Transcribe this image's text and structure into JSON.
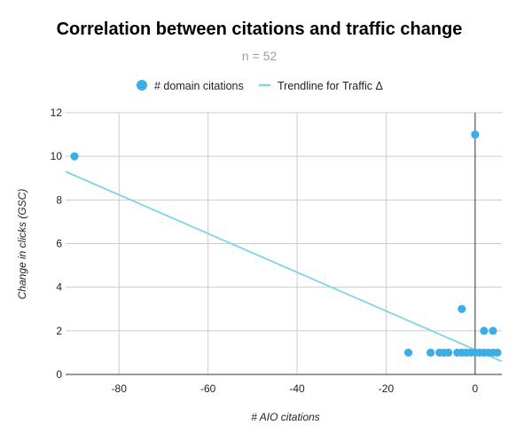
{
  "chart_data": {
    "type": "scatter",
    "title": "Correlation between citations and traffic change",
    "subtitle": "n = 52",
    "xlabel": "# AIO citations",
    "ylabel": "Change in clicks (GSC)",
    "xlim": [
      -92,
      6
    ],
    "ylim": [
      0,
      12
    ],
    "x_ticks": [
      -80,
      -60,
      -40,
      -20,
      0
    ],
    "y_ticks": [
      0,
      2,
      4,
      6,
      8,
      10,
      12
    ],
    "grid": true,
    "legend_position": "top",
    "series": [
      {
        "name": "# domain citations",
        "color": "#3baee8",
        "points": [
          {
            "x": -90,
            "y": 10
          },
          {
            "x": 0,
            "y": 11
          },
          {
            "x": -3,
            "y": 3
          },
          {
            "x": 2,
            "y": 2
          },
          {
            "x": 4,
            "y": 2
          },
          {
            "x": -15,
            "y": 1
          },
          {
            "x": -10,
            "y": 1
          },
          {
            "x": -8,
            "y": 1
          },
          {
            "x": -7,
            "y": 1
          },
          {
            "x": -6,
            "y": 1
          },
          {
            "x": -4,
            "y": 1
          },
          {
            "x": -3,
            "y": 1
          },
          {
            "x": -2,
            "y": 1
          },
          {
            "x": -1,
            "y": 1
          },
          {
            "x": 0,
            "y": 1
          },
          {
            "x": 1,
            "y": 1
          },
          {
            "x": 2,
            "y": 1
          },
          {
            "x": 3,
            "y": 1
          },
          {
            "x": 4,
            "y": 1
          },
          {
            "x": 5,
            "y": 1
          }
        ]
      }
    ],
    "trendline": {
      "name": "Trendline for Traffic Δ",
      "color": "#7fd4ec",
      "x": [
        -92,
        6
      ],
      "y": [
        9.3,
        0.6
      ]
    }
  }
}
